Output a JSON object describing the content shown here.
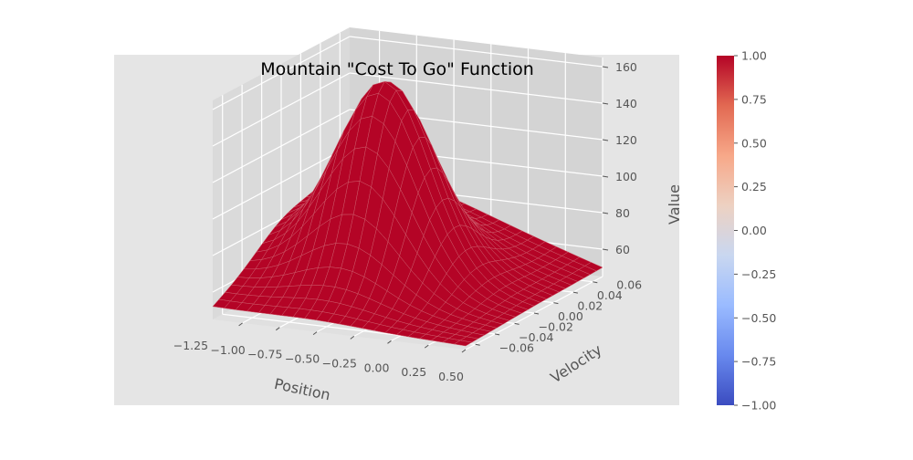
{
  "chart_data": {
    "type": "surface3d",
    "title": "Mountain \"Cost To Go\" Function",
    "xlabel": "Position",
    "ylabel": "Velocity",
    "zlabel": "Value",
    "xlim": [
      -1.2,
      0.5
    ],
    "ylim": [
      -0.07,
      0.07
    ],
    "zlim": [
      45,
      165
    ],
    "xticks": [
      "−1.25",
      "−1.00",
      "−0.75",
      "−0.50",
      "−0.25",
      "0.00",
      "0.25",
      "0.50"
    ],
    "xtick_values": [
      -1.25,
      -1.0,
      -0.75,
      -0.5,
      -0.25,
      0.0,
      0.25,
      0.5
    ],
    "yticks": [
      "−0.06",
      "−0.04",
      "−0.02",
      "0.00",
      "0.02",
      "0.04",
      "0.06"
    ],
    "ytick_values": [
      -0.06,
      -0.04,
      -0.02,
      0.0,
      0.02,
      0.04,
      0.06
    ],
    "zticks": [
      "60",
      "80",
      "100",
      "120",
      "140",
      "160"
    ],
    "ztick_values": [
      60,
      80,
      100,
      120,
      140,
      160
    ],
    "grid": true,
    "surface_color": "#b40426",
    "peak": {
      "x": -0.5,
      "y": 0.0,
      "z": 162
    },
    "corner_values": {
      "xmin_ymin": 52,
      "xmin_ymax": 95,
      "xmax_ymin": 47,
      "xmax_ymax": 50
    },
    "colorbar": {
      "cmap": "coolwarm",
      "min": -1.0,
      "max": 1.0,
      "colors": [
        "#3b4cc0",
        "#6889ee",
        "#9abbff",
        "#c9d7f0",
        "#edd1c2",
        "#f7a889",
        "#e26952",
        "#b40426"
      ],
      "ticks": [
        "−1.00",
        "−0.75",
        "−0.50",
        "−0.25",
        "0.00",
        "0.25",
        "0.50",
        "0.75",
        "1.00"
      ],
      "tick_values": [
        -1.0,
        -0.75,
        -0.5,
        -0.25,
        0.0,
        0.25,
        0.5,
        0.75,
        1.0
      ]
    }
  }
}
